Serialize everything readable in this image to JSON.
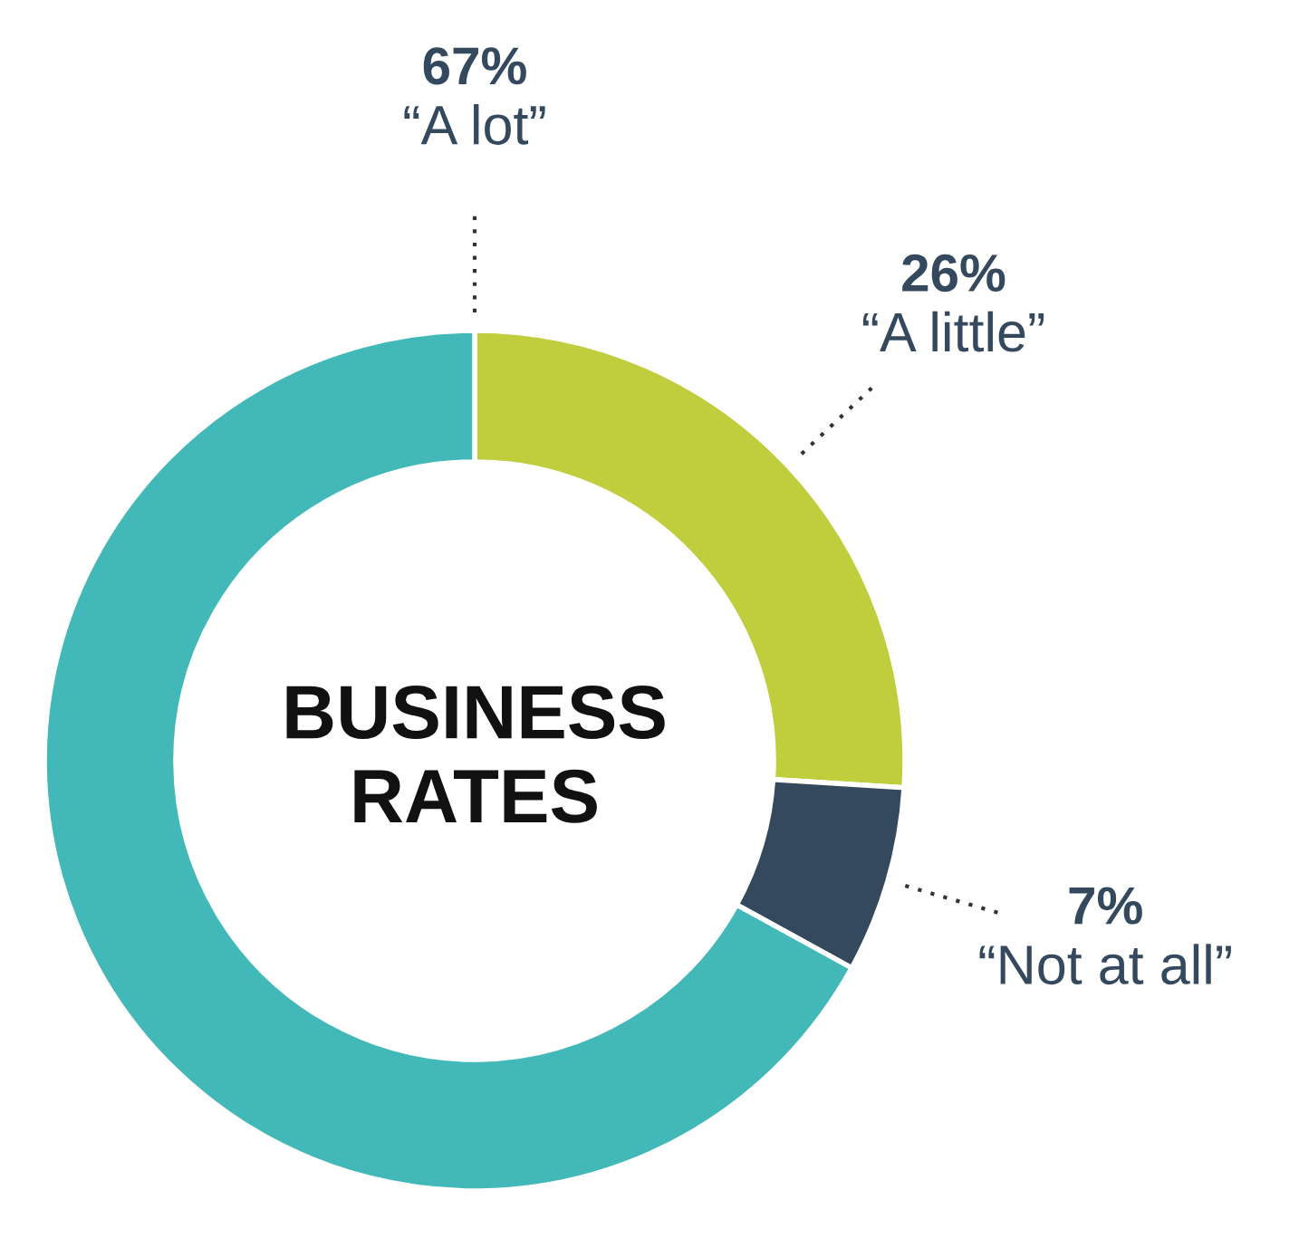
{
  "chart_data": {
    "type": "donut",
    "title": "BUSINESS\nRATES",
    "categories": [
      "“A little”",
      "“Not at all”",
      "“A lot”"
    ],
    "values": [
      26,
      7,
      67
    ],
    "colors": [
      "#c0cd3c",
      "#34495e",
      "#42b8b8"
    ],
    "value_labels": [
      "26%",
      "7%",
      "67%"
    ]
  }
}
